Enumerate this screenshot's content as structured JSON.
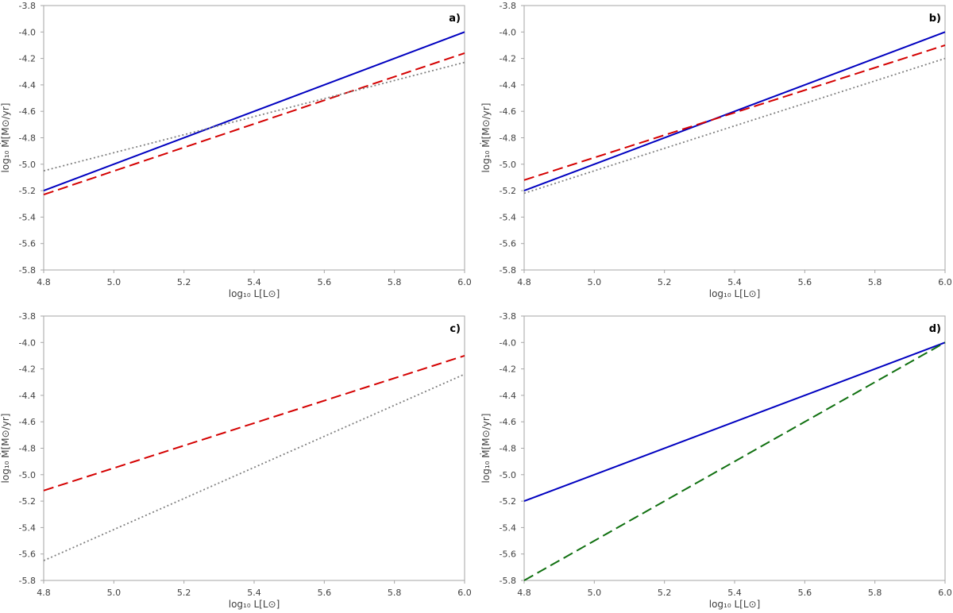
{
  "chart_data": [
    {
      "type": "line",
      "panel_label": "a)",
      "xlabel": "log₁₀ L[L⊙]",
      "ylabel": "log₁₀ Ṁ[M⊙/yr]",
      "xlim": [
        4.8,
        6.0
      ],
      "ylim": [
        -5.8,
        -3.8
      ],
      "xticks": [
        "4.8",
        "5.0",
        "5.2",
        "5.4",
        "5.6",
        "5.8",
        "6.0"
      ],
      "yticks": [
        "-3.8",
        "-4.0",
        "-4.2",
        "-4.4",
        "-4.6",
        "-4.8",
        "-5.0",
        "-5.2",
        "-5.4",
        "-5.6",
        "-5.8"
      ],
      "grid": false,
      "series": [
        {
          "name": "solid-blue",
          "style": "solid",
          "color": "#0000c0",
          "x": [
            4.8,
            6.0
          ],
          "y": [
            -5.2,
            -4.0
          ]
        },
        {
          "name": "dashed-red",
          "style": "dashed",
          "color": "#d40000",
          "x": [
            4.8,
            6.0
          ],
          "y": [
            -5.23,
            -4.16
          ]
        },
        {
          "name": "dotted-grey",
          "style": "dotted",
          "color": "#808080",
          "x": [
            4.8,
            6.0
          ],
          "y": [
            -5.05,
            -4.23
          ]
        }
      ]
    },
    {
      "type": "line",
      "panel_label": "b)",
      "xlabel": "log₁₀ L[L⊙]",
      "ylabel": "log₁₀ Ṁ[M⊙/yr]",
      "xlim": [
        4.8,
        6.0
      ],
      "ylim": [
        -5.8,
        -3.8
      ],
      "xticks": [
        "4.8",
        "5.0",
        "5.2",
        "5.4",
        "5.6",
        "5.8",
        "6.0"
      ],
      "yticks": [
        "-3.8",
        "-4.0",
        "-4.2",
        "-4.4",
        "-4.6",
        "-4.8",
        "-5.0",
        "-5.2",
        "-5.4",
        "-5.6",
        "-5.8"
      ],
      "grid": false,
      "series": [
        {
          "name": "solid-blue",
          "style": "solid",
          "color": "#0000c0",
          "x": [
            4.8,
            6.0
          ],
          "y": [
            -5.2,
            -4.0
          ]
        },
        {
          "name": "dashed-red",
          "style": "dashed",
          "color": "#d40000",
          "x": [
            4.8,
            6.0
          ],
          "y": [
            -5.12,
            -4.1
          ]
        },
        {
          "name": "dotted-grey",
          "style": "dotted",
          "color": "#808080",
          "x": [
            4.8,
            6.0
          ],
          "y": [
            -5.22,
            -4.2
          ]
        }
      ]
    },
    {
      "type": "line",
      "panel_label": "c)",
      "xlabel": "log₁₀ L[L⊙]",
      "ylabel": "log₁₀ Ṁ[M⊙/yr]",
      "xlim": [
        4.8,
        6.0
      ],
      "ylim": [
        -5.8,
        -3.8
      ],
      "xticks": [
        "4.8",
        "5.0",
        "5.2",
        "5.4",
        "5.6",
        "5.8",
        "6.0"
      ],
      "yticks": [
        "-3.8",
        "-4.0",
        "-4.2",
        "-4.4",
        "-4.6",
        "-4.8",
        "-5.0",
        "-5.2",
        "-5.4",
        "-5.6",
        "-5.8"
      ],
      "grid": false,
      "series": [
        {
          "name": "dashed-red",
          "style": "dashed",
          "color": "#d40000",
          "x": [
            4.8,
            6.0
          ],
          "y": [
            -5.12,
            -4.1
          ]
        },
        {
          "name": "dotted-grey",
          "style": "dotted",
          "color": "#808080",
          "x": [
            4.8,
            6.0
          ],
          "y": [
            -5.65,
            -4.24
          ]
        }
      ]
    },
    {
      "type": "line",
      "panel_label": "d)",
      "xlabel": "log₁₀ L[L⊙]",
      "ylabel": "log₁₀ Ṁ[M⊙/yr]",
      "xlim": [
        4.8,
        6.0
      ],
      "ylim": [
        -5.8,
        -3.8
      ],
      "xticks": [
        "4.8",
        "5.0",
        "5.2",
        "5.4",
        "5.6",
        "5.8",
        "6.0"
      ],
      "yticks": [
        "-3.8",
        "-4.0",
        "-4.2",
        "-4.4",
        "-4.6",
        "-4.8",
        "-5.0",
        "-5.2",
        "-5.4",
        "-5.6",
        "-5.8"
      ],
      "grid": false,
      "series": [
        {
          "name": "solid-blue",
          "style": "solid",
          "color": "#0000c0",
          "x": [
            4.8,
            6.0
          ],
          "y": [
            -5.2,
            -4.0
          ]
        },
        {
          "name": "dashed-green",
          "style": "dashed",
          "color": "#107010",
          "x": [
            4.8,
            6.0
          ],
          "y": [
            -5.8,
            -4.0
          ]
        }
      ]
    }
  ]
}
